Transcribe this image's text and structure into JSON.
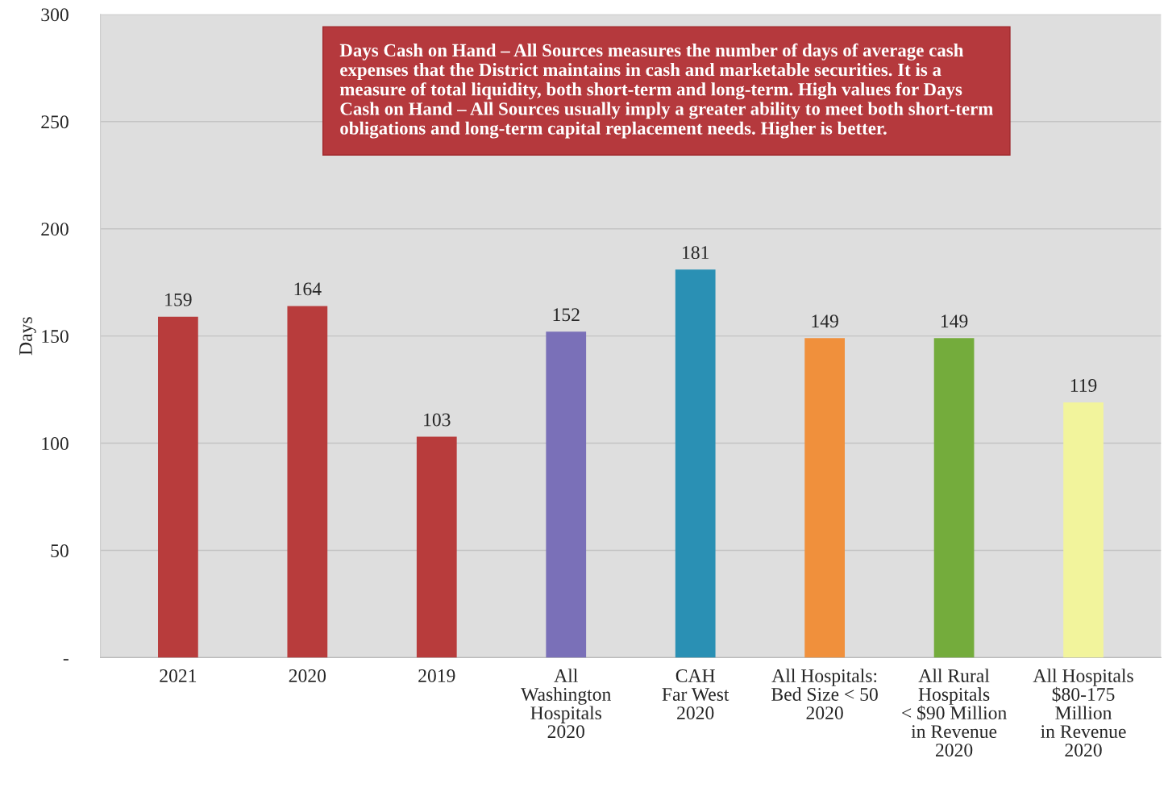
{
  "chart_data": {
    "type": "bar",
    "ylabel": "Days",
    "categories": [
      "2021",
      "2020",
      "2019",
      "All\nWashington\nHospitals\n2020",
      "CAH\nFar West\n2020",
      "All Hospitals:\nBed Size < 50\n2020",
      "All Rural\nHospitals\n< $90 Million\nin Revenue\n2020",
      "All Hospitals\n$80-175\nMillion\nin Revenue\n2020"
    ],
    "values": [
      159,
      164,
      103,
      152,
      181,
      149,
      149,
      119
    ],
    "colors": [
      "#b83c3c",
      "#b83c3c",
      "#b83c3c",
      "#7a70b8",
      "#2a90b4",
      "#f0903c",
      "#74ac3c",
      "#f2f49c"
    ],
    "ylim": [
      0,
      300
    ],
    "yticks": [
      {
        "value": 0,
        "label": "-"
      },
      50,
      100,
      150,
      200,
      250,
      300
    ],
    "grid": "y",
    "data_labels": true,
    "legend": false,
    "annotations": [
      "Days Cash on Hand – All Sources measures the number of days of average cash\nexpenses that the District maintains in cash and marketable securities. It is a\nmeasure of total liquidity, both short-term and long-term. High values for Days\nCash on Hand – All Sources usually imply a greater ability to meet both short-term\nobligations and long-term capital replacement needs. Higher is better."
    ]
  }
}
